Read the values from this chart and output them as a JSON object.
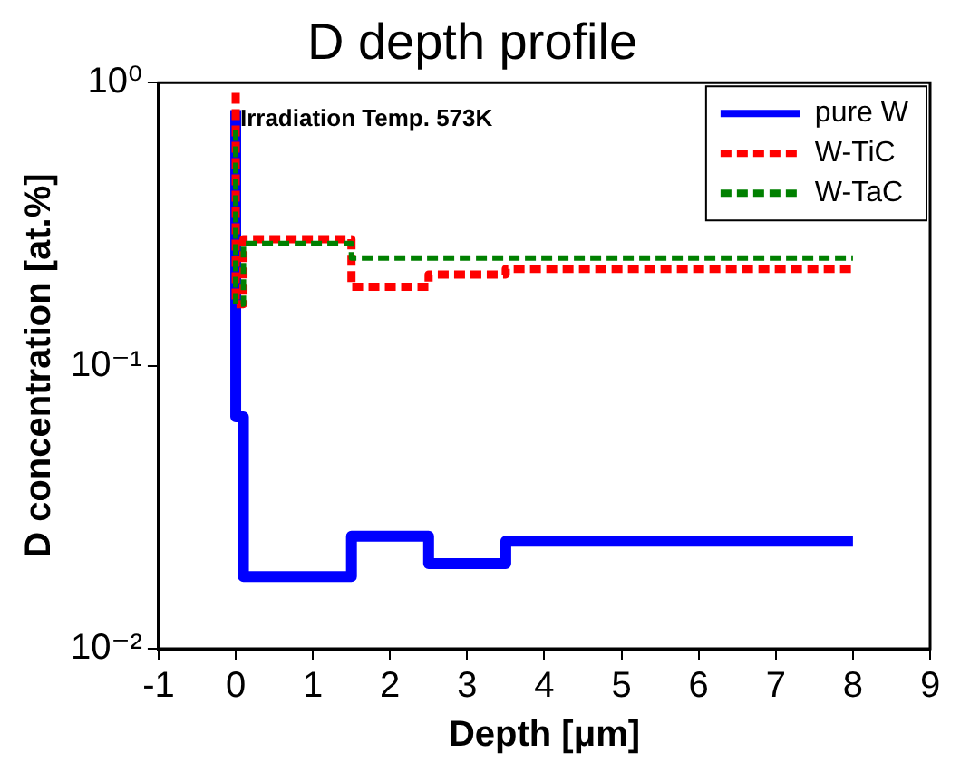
{
  "chart_data": {
    "type": "step",
    "title": "D depth profile",
    "xlabel": "Depth [μm]",
    "ylabel": "D concentration [at.%]",
    "x": [
      0,
      0.1,
      1.5,
      2.5,
      3.5,
      5.5,
      8
    ],
    "series": [
      {
        "name": "pure W",
        "color": "#0000ff",
        "line_style": "solid",
        "values": [
          0.8,
          0.066,
          0.018,
          0.025,
          0.02,
          0.024,
          0.024
        ]
      },
      {
        "name": "W-TiC",
        "color": "#ff0000",
        "line_style": "dashed",
        "values": [
          0.92,
          0.165,
          0.28,
          0.19,
          0.21,
          0.22,
          0.22
        ]
      },
      {
        "name": "W-TaC",
        "color": "#008000",
        "line_style": "dashed",
        "values": [
          0.68,
          0.165,
          0.27,
          0.24,
          0.24,
          0.24,
          0.24
        ]
      }
    ],
    "xlim": [
      -1,
      9
    ],
    "xticks": [
      -1,
      0,
      1,
      2,
      3,
      4,
      5,
      6,
      7,
      8,
      9
    ],
    "ylim": [
      0.01,
      1
    ],
    "yticks": [
      {
        "value": 0.01,
        "label": "10⁻²"
      },
      {
        "value": 0.1,
        "label": "10⁻¹"
      },
      {
        "value": 1,
        "label": "10⁰"
      }
    ],
    "log": "y",
    "grid": false,
    "legend": "top right",
    "marker": "none",
    "annotations": [
      "Irradiation Temp. 573K"
    ]
  }
}
